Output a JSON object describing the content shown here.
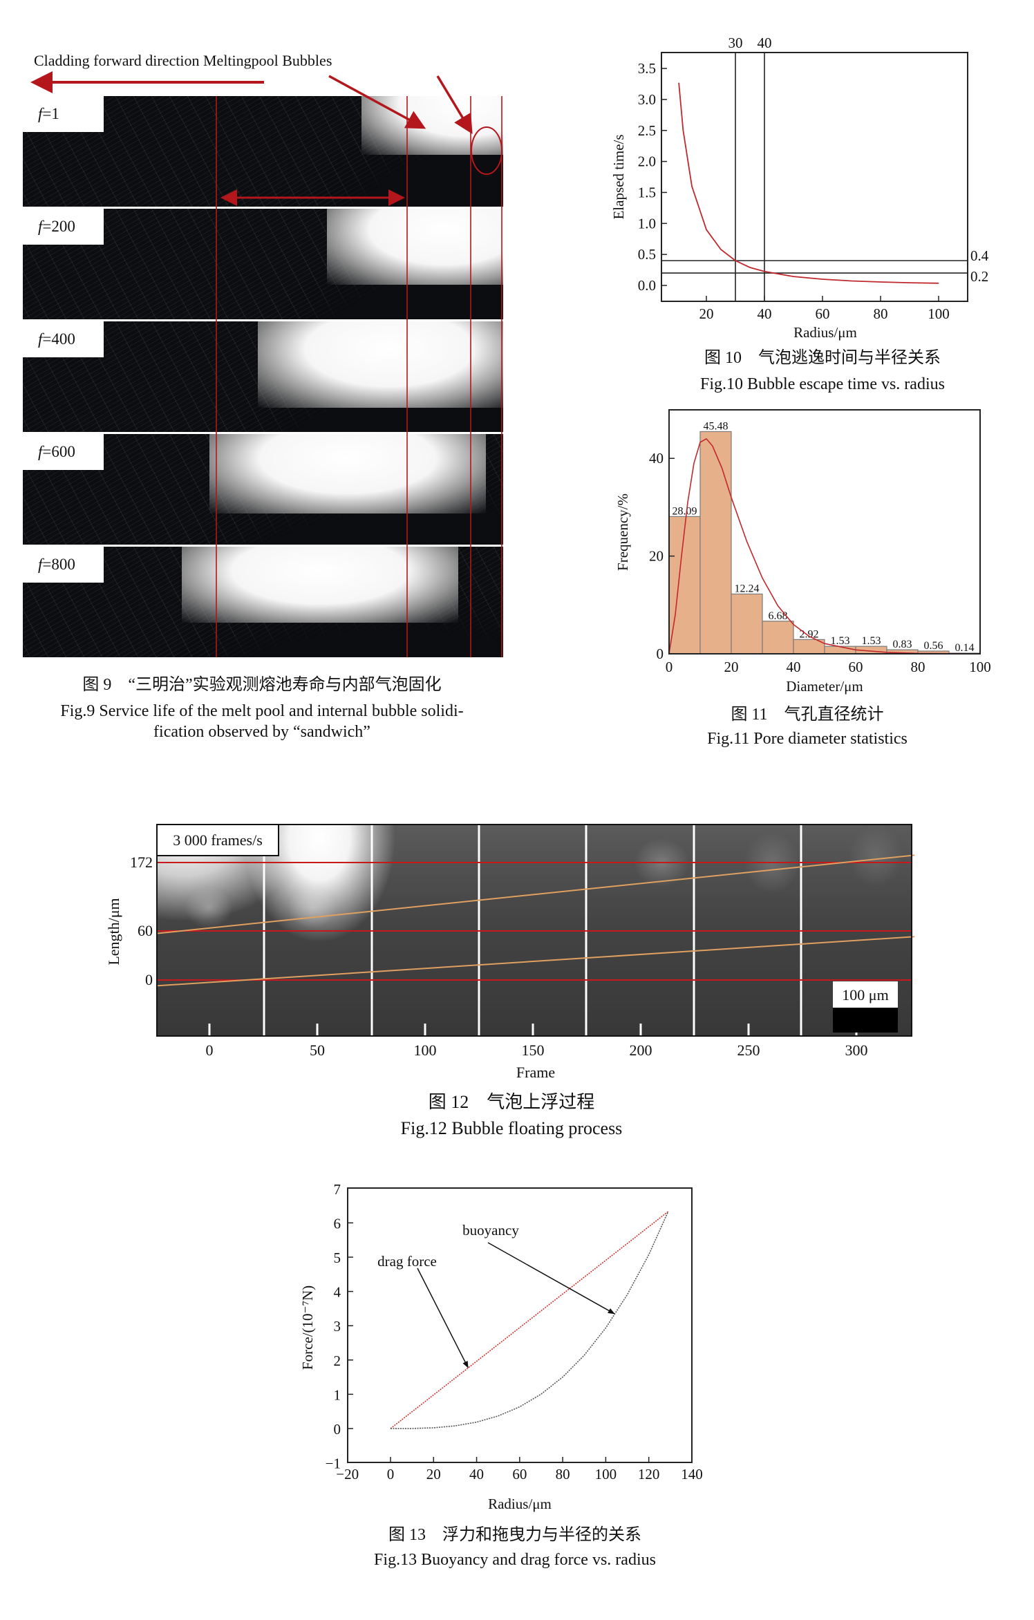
{
  "fig9": {
    "annotation": "Cladding forward direction Meltingpool Bubbles",
    "panels": [
      {
        "label_var": "f",
        "label_value": "=1"
      },
      {
        "label_var": "f",
        "label_value": "=200"
      },
      {
        "label_var": "f",
        "label_value": "=400"
      },
      {
        "label_var": "f",
        "label_value": "=600"
      },
      {
        "label_var": "f",
        "label_value": "=800"
      }
    ],
    "caption_cn": "图 9　“三明治”实验观测熔池寿命与内部气泡固化",
    "caption_en_line1": "Fig.9 Service life of the melt pool and internal bubble solidi-",
    "caption_en_line2": "fication observed by “sandwich”",
    "annotation_color": "#b3161b"
  },
  "chart_data": [
    {
      "id": "fig10",
      "type": "line",
      "xlabel": "Radius/μm",
      "ylabel": "Elapsed time/s",
      "xlim": [
        4.5,
        110
      ],
      "ylim": [
        -0.25,
        3.75
      ],
      "xticks": [
        "20",
        "40",
        "60",
        "80",
        "100"
      ],
      "yticks": [
        "0.0",
        "0.5",
        "1.0",
        "1.5",
        "2.0",
        "2.5",
        "3.0",
        "3.5"
      ],
      "grid": false,
      "series": [
        {
          "color": "#c0282d",
          "x": [
            10.5,
            12,
            15,
            20,
            25,
            30,
            35,
            40,
            50,
            60,
            70,
            80,
            90,
            100
          ],
          "y": [
            3.27,
            2.5,
            1.6,
            0.9,
            0.58,
            0.4,
            0.29,
            0.225,
            0.144,
            0.1,
            0.073,
            0.056,
            0.044,
            0.036
          ]
        }
      ],
      "reference_lines": {
        "vertical": [
          {
            "x": 30,
            "label": "30"
          },
          {
            "x": 40,
            "label": "40"
          }
        ],
        "horizontal": [
          {
            "y": 0.4,
            "label": "0.4"
          },
          {
            "y": 0.2,
            "label": "0.2"
          }
        ]
      },
      "caption_cn": "图 10　气泡逃逸时间与半径关系",
      "caption_en": "Fig.10 Bubble escape time vs. radius"
    },
    {
      "id": "fig11",
      "type": "bar",
      "xlabel": "Diameter/μm",
      "ylabel": "Frequency/%",
      "xlim": [
        0,
        100
      ],
      "ylim": [
        0,
        50
      ],
      "xticks": [
        "0",
        "20",
        "40",
        "60",
        "80",
        "100"
      ],
      "yticks": [
        "0",
        "20",
        "40"
      ],
      "bin_edges": [
        0,
        10,
        20,
        30,
        40,
        50,
        60,
        70,
        80,
        90,
        100
      ],
      "values": [
        28.09,
        45.48,
        12.24,
        6.68,
        2.92,
        1.53,
        1.53,
        0.83,
        0.56,
        0.14
      ],
      "value_labels": [
        "28.09",
        "45.48",
        "12.24",
        "6.68",
        "2.92",
        "1.53",
        "1.53",
        "0.83",
        "0.56",
        "0.14"
      ],
      "bar_color": "#e6b08b",
      "fit_curve": {
        "color": "#c0282d",
        "x": [
          0,
          2,
          4,
          6,
          8,
          10,
          12,
          14,
          17,
          20,
          25,
          30,
          35,
          40,
          45,
          50,
          60,
          70,
          80,
          90,
          100
        ],
        "y": [
          0,
          8,
          20,
          31,
          39,
          43.3,
          44,
          42.5,
          38,
          32,
          23,
          15.5,
          9.8,
          6,
          3.6,
          2.1,
          0.8,
          0.3,
          0.1,
          0.04,
          0.01
        ]
      },
      "caption_cn": "图 11　气孔直径统计",
      "caption_en": "Fig.11 Pore diameter statistics"
    },
    {
      "id": "fig12",
      "type": "image-annotation",
      "xlabel": "Frame",
      "ylabel": "Length/μm",
      "xlim": [
        -24,
        327
      ],
      "xticks": [
        "0",
        "50",
        "100",
        "150",
        "200",
        "250",
        "300"
      ],
      "reference_lines": [
        {
          "y": 172,
          "label": "172"
        },
        {
          "y": 60,
          "label": "60"
        },
        {
          "y": 0,
          "label": "0"
        }
      ],
      "trajectories": [
        {
          "color": "#e0a060",
          "points": [
            [
              -24,
              57
            ],
            [
              327,
              184
            ]
          ]
        },
        {
          "color": "#e0a060",
          "points": [
            [
              -24,
              -7
            ],
            [
              327,
              53
            ]
          ]
        }
      ],
      "frame_rate_label": "3 000 frames/s",
      "scale_bar_label": "100 μm",
      "caption_cn": "图 12　气泡上浮过程",
      "caption_en": "Fig.12 Bubble floating process"
    },
    {
      "id": "fig13",
      "type": "line",
      "xlabel": "Radius/μm",
      "ylabel": "Force/(10⁻⁷N)",
      "xlim": [
        -20,
        140
      ],
      "ylim": [
        -1,
        7
      ],
      "xticks": [
        "−20",
        "0",
        "20",
        "40",
        "60",
        "80",
        "100",
        "120",
        "140"
      ],
      "yticks": [
        "−1",
        "0",
        "1",
        "2",
        "3",
        "4",
        "5",
        "6",
        "7"
      ],
      "grid": false,
      "series": [
        {
          "color": "#d0312d",
          "style": "dotted",
          "x": [
            0,
            129
          ],
          "y": [
            0,
            6.33
          ]
        },
        {
          "color": "#555555",
          "style": "dotted",
          "x": [
            0,
            10,
            20,
            30,
            40,
            50,
            60,
            70,
            80,
            90,
            100,
            110,
            120,
            129
          ],
          "y": [
            0,
            0.003,
            0.023,
            0.079,
            0.188,
            0.367,
            0.634,
            1.007,
            1.503,
            2.14,
            2.935,
            3.907,
            5.072,
            6.33
          ]
        }
      ],
      "annotations": [
        {
          "text": "buoyancy",
          "points_to": [
            104,
            3.35
          ]
        },
        {
          "text": "drag force",
          "points_to": [
            36,
            1.78
          ]
        }
      ],
      "caption_cn": "图 13　浮力和拖曳力与半径的关系",
      "caption_en": "Fig.13 Buoyancy and drag force vs. radius"
    }
  ]
}
